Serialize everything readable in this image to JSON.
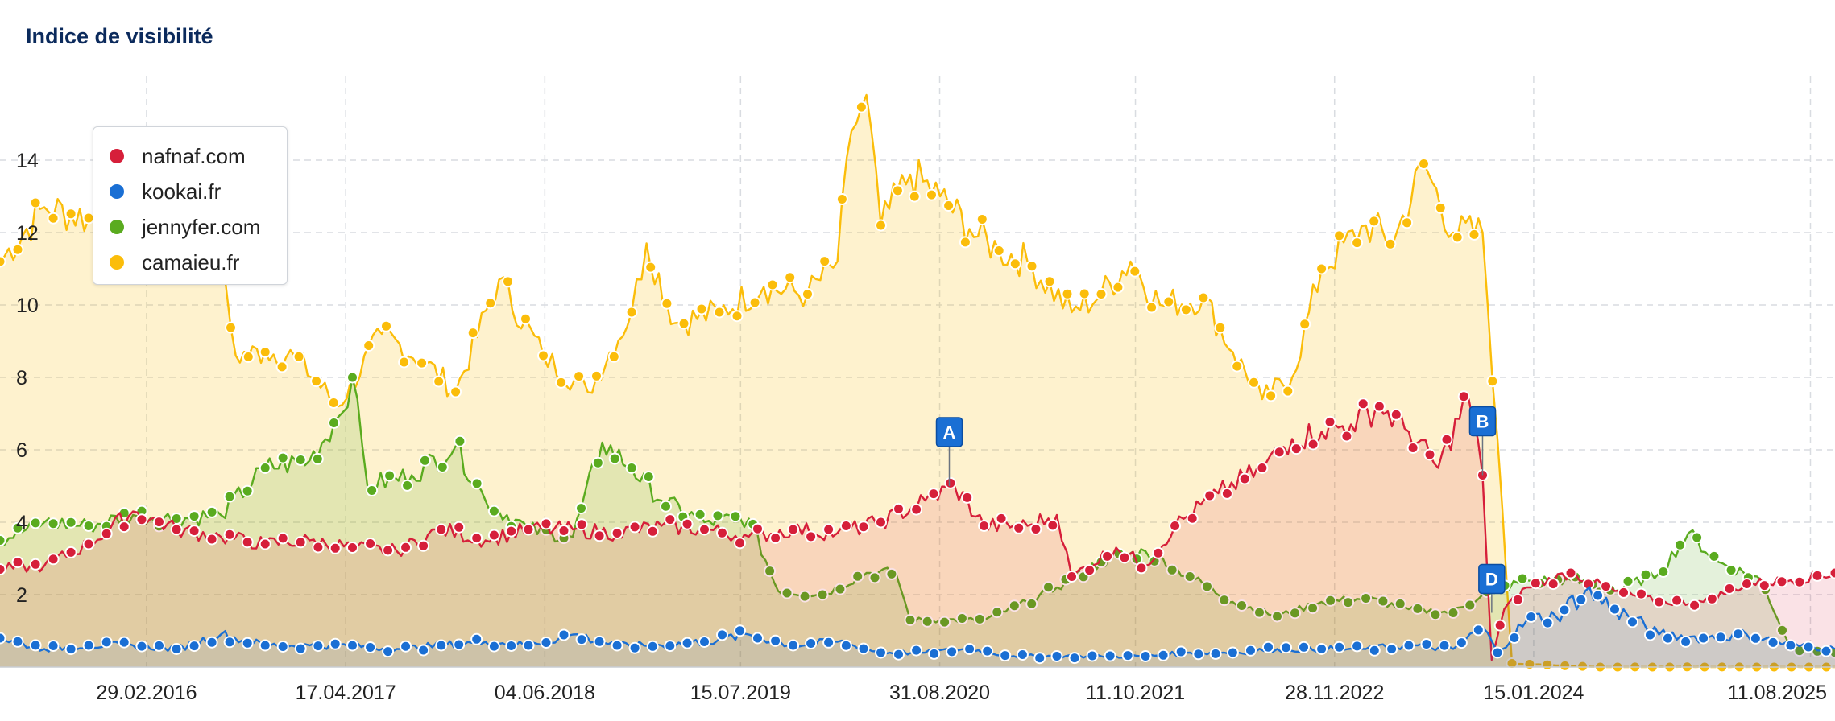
{
  "header": {
    "title": "Indice de visibilité"
  },
  "legend": {
    "items": [
      {
        "label": "nafnaf.com",
        "color": "#d61f3a"
      },
      {
        "label": "kookai.fr",
        "color": "#1a6fd4"
      },
      {
        "label": "jennyfer.com",
        "color": "#5aab1f"
      },
      {
        "label": "camaieu.fr",
        "color": "#fbbd0a"
      }
    ]
  },
  "chart_data": {
    "type": "area",
    "title": "Indice de visibilité",
    "xlabel": "",
    "ylabel": "",
    "ylim": [
      0,
      16
    ],
    "yticks": [
      2,
      4,
      6,
      8,
      10,
      12,
      14
    ],
    "xlim": [
      "2015-05-01",
      "2025-10-01"
    ],
    "xticks": [
      "29.02.2016",
      "17.04.2017",
      "04.06.2018",
      "15.07.2019",
      "31.08.2020",
      "11.10.2021",
      "28.11.2022",
      "15.01.2024",
      "11.08.2025"
    ],
    "grid": true,
    "legend_position": "top-left",
    "series": [
      {
        "name": "nafnaf.com",
        "color": "#d61f3a",
        "points": [
          [
            "2015-05-01",
            2.7
          ],
          [
            "2015-08-01",
            2.8
          ],
          [
            "2015-11-01",
            3.4
          ],
          [
            "2016-02-01",
            4.3
          ],
          [
            "2016-05-01",
            3.8
          ],
          [
            "2016-08-01",
            3.6
          ],
          [
            "2016-11-01",
            3.4
          ],
          [
            "2017-02-01",
            3.5
          ],
          [
            "2017-05-01",
            3.3
          ],
          [
            "2017-08-01",
            3.2
          ],
          [
            "2017-11-01",
            3.8
          ],
          [
            "2018-02-01",
            3.5
          ],
          [
            "2018-05-01",
            3.8
          ],
          [
            "2018-08-01",
            3.8
          ],
          [
            "2018-11-01",
            3.7
          ],
          [
            "2019-02-01",
            3.9
          ],
          [
            "2019-05-01",
            3.8
          ],
          [
            "2019-08-01",
            3.6
          ],
          [
            "2019-11-01",
            3.8
          ],
          [
            "2020-02-01",
            3.7
          ],
          [
            "2020-05-01",
            4.0
          ],
          [
            "2020-08-01",
            4.6
          ],
          [
            "2020-10-01",
            5.0
          ],
          [
            "2020-12-01",
            3.9
          ],
          [
            "2021-03-01",
            3.9
          ],
          [
            "2021-05-01",
            4.2
          ],
          [
            "2021-06-01",
            2.5
          ],
          [
            "2021-09-01",
            3.3
          ],
          [
            "2021-11-01",
            2.8
          ],
          [
            "2022-01-01",
            3.9
          ],
          [
            "2022-04-01",
            4.8
          ],
          [
            "2022-07-01",
            5.5
          ],
          [
            "2022-09-01",
            6.3
          ],
          [
            "2022-11-01",
            6.5
          ],
          [
            "2023-01-01",
            6.7
          ],
          [
            "2023-03-01",
            7.2
          ],
          [
            "2023-05-01",
            6.5
          ],
          [
            "2023-07-01",
            5.5
          ],
          [
            "2023-09-01",
            7.5
          ],
          [
            "2023-10-01",
            5.3
          ],
          [
            "2023-10-20",
            0.2
          ],
          [
            "2023-11-15",
            1.6
          ],
          [
            "2024-01-01",
            2.2
          ],
          [
            "2024-04-01",
            2.6
          ],
          [
            "2024-07-01",
            2.1
          ],
          [
            "2024-10-01",
            1.8
          ],
          [
            "2025-01-01",
            1.8
          ],
          [
            "2025-04-01",
            2.3
          ],
          [
            "2025-07-01",
            2.4
          ],
          [
            "2025-10-01",
            2.6
          ]
        ]
      },
      {
        "name": "kookai.fr",
        "color": "#1a6fd4",
        "points": [
          [
            "2015-05-01",
            0.8
          ],
          [
            "2015-08-01",
            0.5
          ],
          [
            "2015-11-01",
            0.6
          ],
          [
            "2016-02-01",
            0.6
          ],
          [
            "2016-05-01",
            0.5
          ],
          [
            "2016-08-01",
            0.9
          ],
          [
            "2016-11-01",
            0.6
          ],
          [
            "2017-02-01",
            0.6
          ],
          [
            "2017-05-01",
            0.6
          ],
          [
            "2017-08-01",
            0.5
          ],
          [
            "2017-11-01",
            0.6
          ],
          [
            "2018-02-01",
            0.7
          ],
          [
            "2018-05-01",
            0.6
          ],
          [
            "2018-08-01",
            0.9
          ],
          [
            "2018-11-01",
            0.6
          ],
          [
            "2019-02-01",
            0.6
          ],
          [
            "2019-05-01",
            0.7
          ],
          [
            "2019-08-01",
            0.9
          ],
          [
            "2019-11-01",
            0.6
          ],
          [
            "2020-02-01",
            0.7
          ],
          [
            "2020-05-01",
            0.4
          ],
          [
            "2020-08-01",
            0.4
          ],
          [
            "2020-11-01",
            0.5
          ],
          [
            "2021-02-01",
            0.3
          ],
          [
            "2021-05-01",
            0.3
          ],
          [
            "2021-08-01",
            0.3
          ],
          [
            "2021-11-01",
            0.3
          ],
          [
            "2022-02-01",
            0.4
          ],
          [
            "2022-05-01",
            0.4
          ],
          [
            "2022-08-01",
            0.5
          ],
          [
            "2022-11-01",
            0.5
          ],
          [
            "2023-02-01",
            0.5
          ],
          [
            "2023-05-01",
            0.6
          ],
          [
            "2023-08-01",
            0.5
          ],
          [
            "2023-10-01",
            1.1
          ],
          [
            "2023-11-01",
            0.4
          ],
          [
            "2024-01-01",
            1.3
          ],
          [
            "2024-03-01",
            1.4
          ],
          [
            "2024-05-01",
            2.1
          ],
          [
            "2024-07-01",
            1.6
          ],
          [
            "2024-10-01",
            0.9
          ],
          [
            "2025-01-01",
            0.8
          ],
          [
            "2025-04-01",
            0.9
          ],
          [
            "2025-07-01",
            0.6
          ],
          [
            "2025-10-01",
            0.5
          ]
        ]
      },
      {
        "name": "jennyfer.com",
        "color": "#5aab1f",
        "points": [
          [
            "2015-05-01",
            3.5
          ],
          [
            "2015-08-01",
            4.0
          ],
          [
            "2015-11-01",
            3.9
          ],
          [
            "2016-02-01",
            4.2
          ],
          [
            "2016-05-01",
            4.1
          ],
          [
            "2016-08-01",
            4.2
          ],
          [
            "2016-11-01",
            5.5
          ],
          [
            "2017-02-01",
            5.7
          ],
          [
            "2017-04-01",
            6.9
          ],
          [
            "2017-05-01",
            8.0
          ],
          [
            "2017-06-01",
            5.0
          ],
          [
            "2017-09-01",
            5.3
          ],
          [
            "2017-12-01",
            6.1
          ],
          [
            "2018-02-01",
            4.6
          ],
          [
            "2018-05-01",
            3.8
          ],
          [
            "2018-08-01",
            3.6
          ],
          [
            "2018-10-01",
            6.2
          ],
          [
            "2018-12-01",
            5.5
          ],
          [
            "2019-02-01",
            4.6
          ],
          [
            "2019-05-01",
            4.0
          ],
          [
            "2019-08-01",
            4.1
          ],
          [
            "2019-10-01",
            2.1
          ],
          [
            "2020-01-01",
            2.0
          ],
          [
            "2020-04-01",
            2.6
          ],
          [
            "2020-06-01",
            2.6
          ],
          [
            "2020-07-01",
            1.3
          ],
          [
            "2020-09-01",
            1.3
          ],
          [
            "2020-12-01",
            1.3
          ],
          [
            "2021-03-01",
            1.8
          ],
          [
            "2021-05-01",
            2.2
          ],
          [
            "2021-08-01",
            2.9
          ],
          [
            "2021-11-01",
            3.2
          ],
          [
            "2022-02-01",
            2.5
          ],
          [
            "2022-05-01",
            1.8
          ],
          [
            "2022-08-01",
            1.4
          ],
          [
            "2022-11-01",
            1.8
          ],
          [
            "2023-02-01",
            1.9
          ],
          [
            "2023-05-01",
            1.6
          ],
          [
            "2023-08-01",
            1.5
          ],
          [
            "2023-10-01",
            2.0
          ],
          [
            "2024-01-01",
            2.4
          ],
          [
            "2024-04-01",
            2.4
          ],
          [
            "2024-07-01",
            2.1
          ],
          [
            "2024-10-01",
            2.6
          ],
          [
            "2024-12-01",
            3.7
          ],
          [
            "2025-02-01",
            2.9
          ],
          [
            "2025-05-01",
            2.4
          ],
          [
            "2025-07-01",
            0.5
          ],
          [
            "2025-10-01",
            0.4
          ]
        ]
      },
      {
        "name": "camaieu.fr",
        "color": "#fbbd0a",
        "points": [
          [
            "2015-05-01",
            11.2
          ],
          [
            "2015-08-01",
            12.7
          ],
          [
            "2015-11-01",
            12.4
          ],
          [
            "2016-02-01",
            11.8
          ],
          [
            "2016-05-01",
            11.8
          ],
          [
            "2016-08-01",
            11.0
          ],
          [
            "2016-09-01",
            8.6
          ],
          [
            "2016-11-01",
            8.7
          ],
          [
            "2017-01-01",
            8.6
          ],
          [
            "2017-04-01",
            7.2
          ],
          [
            "2017-07-01",
            9.2
          ],
          [
            "2017-10-01",
            8.4
          ],
          [
            "2017-12-01",
            7.6
          ],
          [
            "2018-03-01",
            10.7
          ],
          [
            "2018-06-01",
            8.6
          ],
          [
            "2018-09-01",
            7.6
          ],
          [
            "2018-12-01",
            9.8
          ],
          [
            "2019-01-01",
            11.7
          ],
          [
            "2019-03-01",
            9.5
          ],
          [
            "2019-06-01",
            9.8
          ],
          [
            "2019-09-01",
            10.5
          ],
          [
            "2019-12-01",
            10.3
          ],
          [
            "2020-02-01",
            11.2
          ],
          [
            "2020-03-01",
            14.8
          ],
          [
            "2020-04-01",
            15.8
          ],
          [
            "2020-05-01",
            12.2
          ],
          [
            "2020-07-01",
            13.6
          ],
          [
            "2020-09-01",
            13.0
          ],
          [
            "2020-11-01",
            12.1
          ],
          [
            "2021-01-01",
            11.5
          ],
          [
            "2021-03-01",
            11.2
          ],
          [
            "2021-06-01",
            9.8
          ],
          [
            "2021-08-01",
            10.3
          ],
          [
            "2021-10-01",
            11.2
          ],
          [
            "2021-12-01",
            10.0
          ],
          [
            "2022-03-01",
            10.2
          ],
          [
            "2022-05-01",
            8.7
          ],
          [
            "2022-07-01",
            7.4
          ],
          [
            "2022-09-01",
            8.0
          ],
          [
            "2022-11-01",
            11.0
          ],
          [
            "2023-02-01",
            12.2
          ],
          [
            "2023-04-01",
            11.8
          ],
          [
            "2023-06-01",
            13.9
          ],
          [
            "2023-08-01",
            12.0
          ],
          [
            "2023-10-01",
            12.0
          ],
          [
            "2023-11-01",
            6.3
          ],
          [
            "2023-12-01",
            0.1
          ],
          [
            "2024-06-01",
            0.0
          ],
          [
            "2025-10-01",
            0.0
          ]
        ]
      }
    ],
    "annotations": [
      {
        "label": "A",
        "date": "2020-09-20",
        "value": 5.0
      },
      {
        "label": "B",
        "date": "2023-10-01",
        "value": 5.3
      },
      {
        "label": "D",
        "date": "2023-10-20",
        "value": 1.5
      }
    ]
  }
}
